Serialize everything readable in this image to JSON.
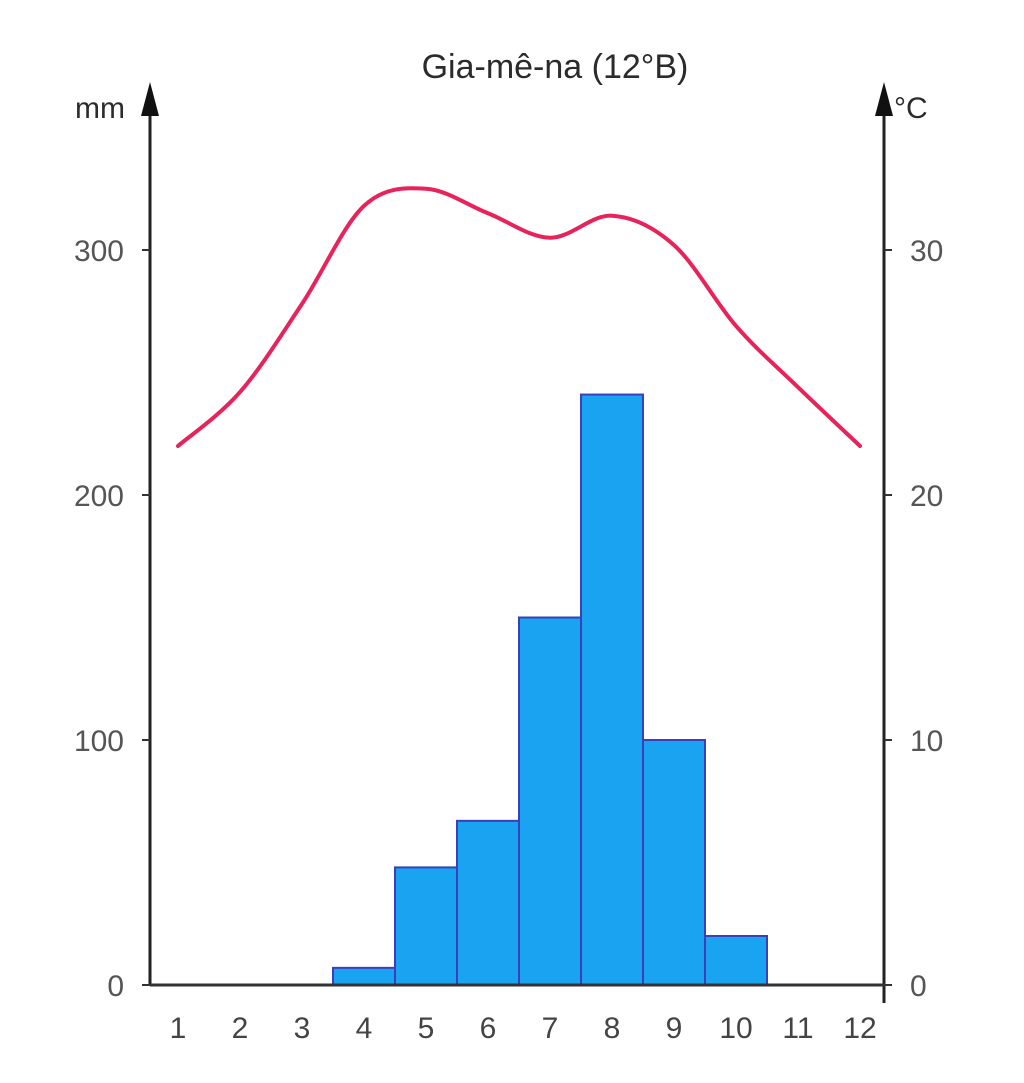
{
  "chart_data": {
    "type": "bar+line",
    "title": "Gia-mê-na (12°B)",
    "left_axis": {
      "unit": "mm",
      "ticks": [
        "0",
        "100",
        "200",
        "300"
      ],
      "range": [
        0,
        300
      ]
    },
    "right_axis": {
      "unit": "°C",
      "ticks": [
        "0",
        "10",
        "20",
        "30"
      ],
      "range": [
        0,
        30
      ]
    },
    "categories": [
      "1",
      "2",
      "3",
      "4",
      "5",
      "6",
      "7",
      "8",
      "9",
      "10",
      "11",
      "12"
    ],
    "series": [
      {
        "kind": "bar",
        "axis": "left",
        "color": "#1aa3f0",
        "values": [
          0,
          0,
          0,
          7,
          48,
          67,
          150,
          241,
          100,
          20,
          0,
          0
        ]
      },
      {
        "kind": "line",
        "axis": "right",
        "color": "#e8235b",
        "values": [
          22.0,
          24.2,
          27.8,
          31.8,
          32.5,
          31.5,
          30.5,
          31.4,
          30.2,
          26.9,
          24.4,
          22.0
        ]
      }
    ],
    "grid": false,
    "legend": "none"
  }
}
